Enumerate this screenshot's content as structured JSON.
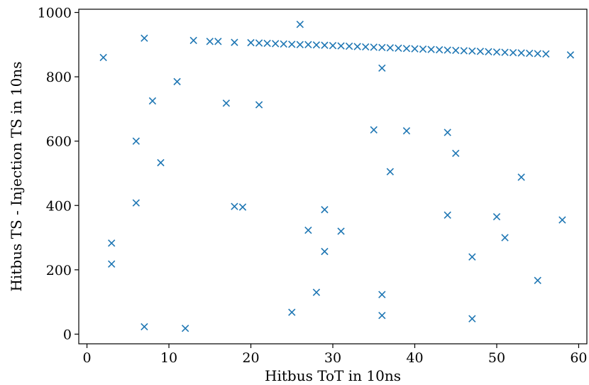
{
  "chart_data": {
    "type": "scatter",
    "title": "",
    "xlabel": "Hitbus ToT in 10ns",
    "ylabel": "Hitbus TS - Injection TS in 10ns",
    "xlim": [
      -1,
      61
    ],
    "ylim": [
      -30,
      1010
    ],
    "xticks": [
      0,
      10,
      20,
      30,
      40,
      50,
      60
    ],
    "yticks": [
      0,
      200,
      400,
      600,
      800,
      1000
    ],
    "marker": "x",
    "color": "#1f77b4",
    "grid": false,
    "points": [
      [
        2,
        860
      ],
      [
        3,
        283
      ],
      [
        3,
        218
      ],
      [
        6,
        600
      ],
      [
        6,
        408
      ],
      [
        7,
        920
      ],
      [
        7,
        23
      ],
      [
        8,
        725
      ],
      [
        9,
        533
      ],
      [
        11,
        785
      ],
      [
        12,
        18
      ],
      [
        13,
        913
      ],
      [
        15,
        910
      ],
      [
        16,
        910
      ],
      [
        17,
        718
      ],
      [
        18,
        907
      ],
      [
        18,
        397
      ],
      [
        19,
        395
      ],
      [
        20,
        906
      ],
      [
        21,
        905
      ],
      [
        21,
        713
      ],
      [
        22,
        904
      ],
      [
        23,
        903
      ],
      [
        24,
        902
      ],
      [
        25,
        901
      ],
      [
        25,
        68
      ],
      [
        26,
        900
      ],
      [
        26,
        963
      ],
      [
        27,
        900
      ],
      [
        27,
        323
      ],
      [
        28,
        899
      ],
      [
        28,
        130
      ],
      [
        29,
        898
      ],
      [
        29,
        387
      ],
      [
        29,
        257
      ],
      [
        30,
        897
      ],
      [
        31,
        896
      ],
      [
        31,
        320
      ],
      [
        32,
        895
      ],
      [
        33,
        894
      ],
      [
        34,
        893
      ],
      [
        35,
        892
      ],
      [
        35,
        635
      ],
      [
        36,
        891
      ],
      [
        36,
        827
      ],
      [
        36,
        123
      ],
      [
        36,
        58
      ],
      [
        37,
        890
      ],
      [
        37,
        505
      ],
      [
        38,
        889
      ],
      [
        39,
        888
      ],
      [
        39,
        632
      ],
      [
        40,
        887
      ],
      [
        41,
        886
      ],
      [
        42,
        885
      ],
      [
        43,
        884
      ],
      [
        44,
        883
      ],
      [
        44,
        627
      ],
      [
        44,
        370
      ],
      [
        45,
        882
      ],
      [
        45,
        562
      ],
      [
        46,
        881
      ],
      [
        47,
        880
      ],
      [
        47,
        240
      ],
      [
        47,
        48
      ],
      [
        48,
        879
      ],
      [
        49,
        878
      ],
      [
        50,
        877
      ],
      [
        50,
        365
      ],
      [
        51,
        876
      ],
      [
        51,
        300
      ],
      [
        52,
        875
      ],
      [
        53,
        874
      ],
      [
        53,
        488
      ],
      [
        54,
        873
      ],
      [
        55,
        872
      ],
      [
        55,
        167
      ],
      [
        56,
        871
      ],
      [
        58,
        355
      ],
      [
        59,
        868
      ]
    ]
  }
}
